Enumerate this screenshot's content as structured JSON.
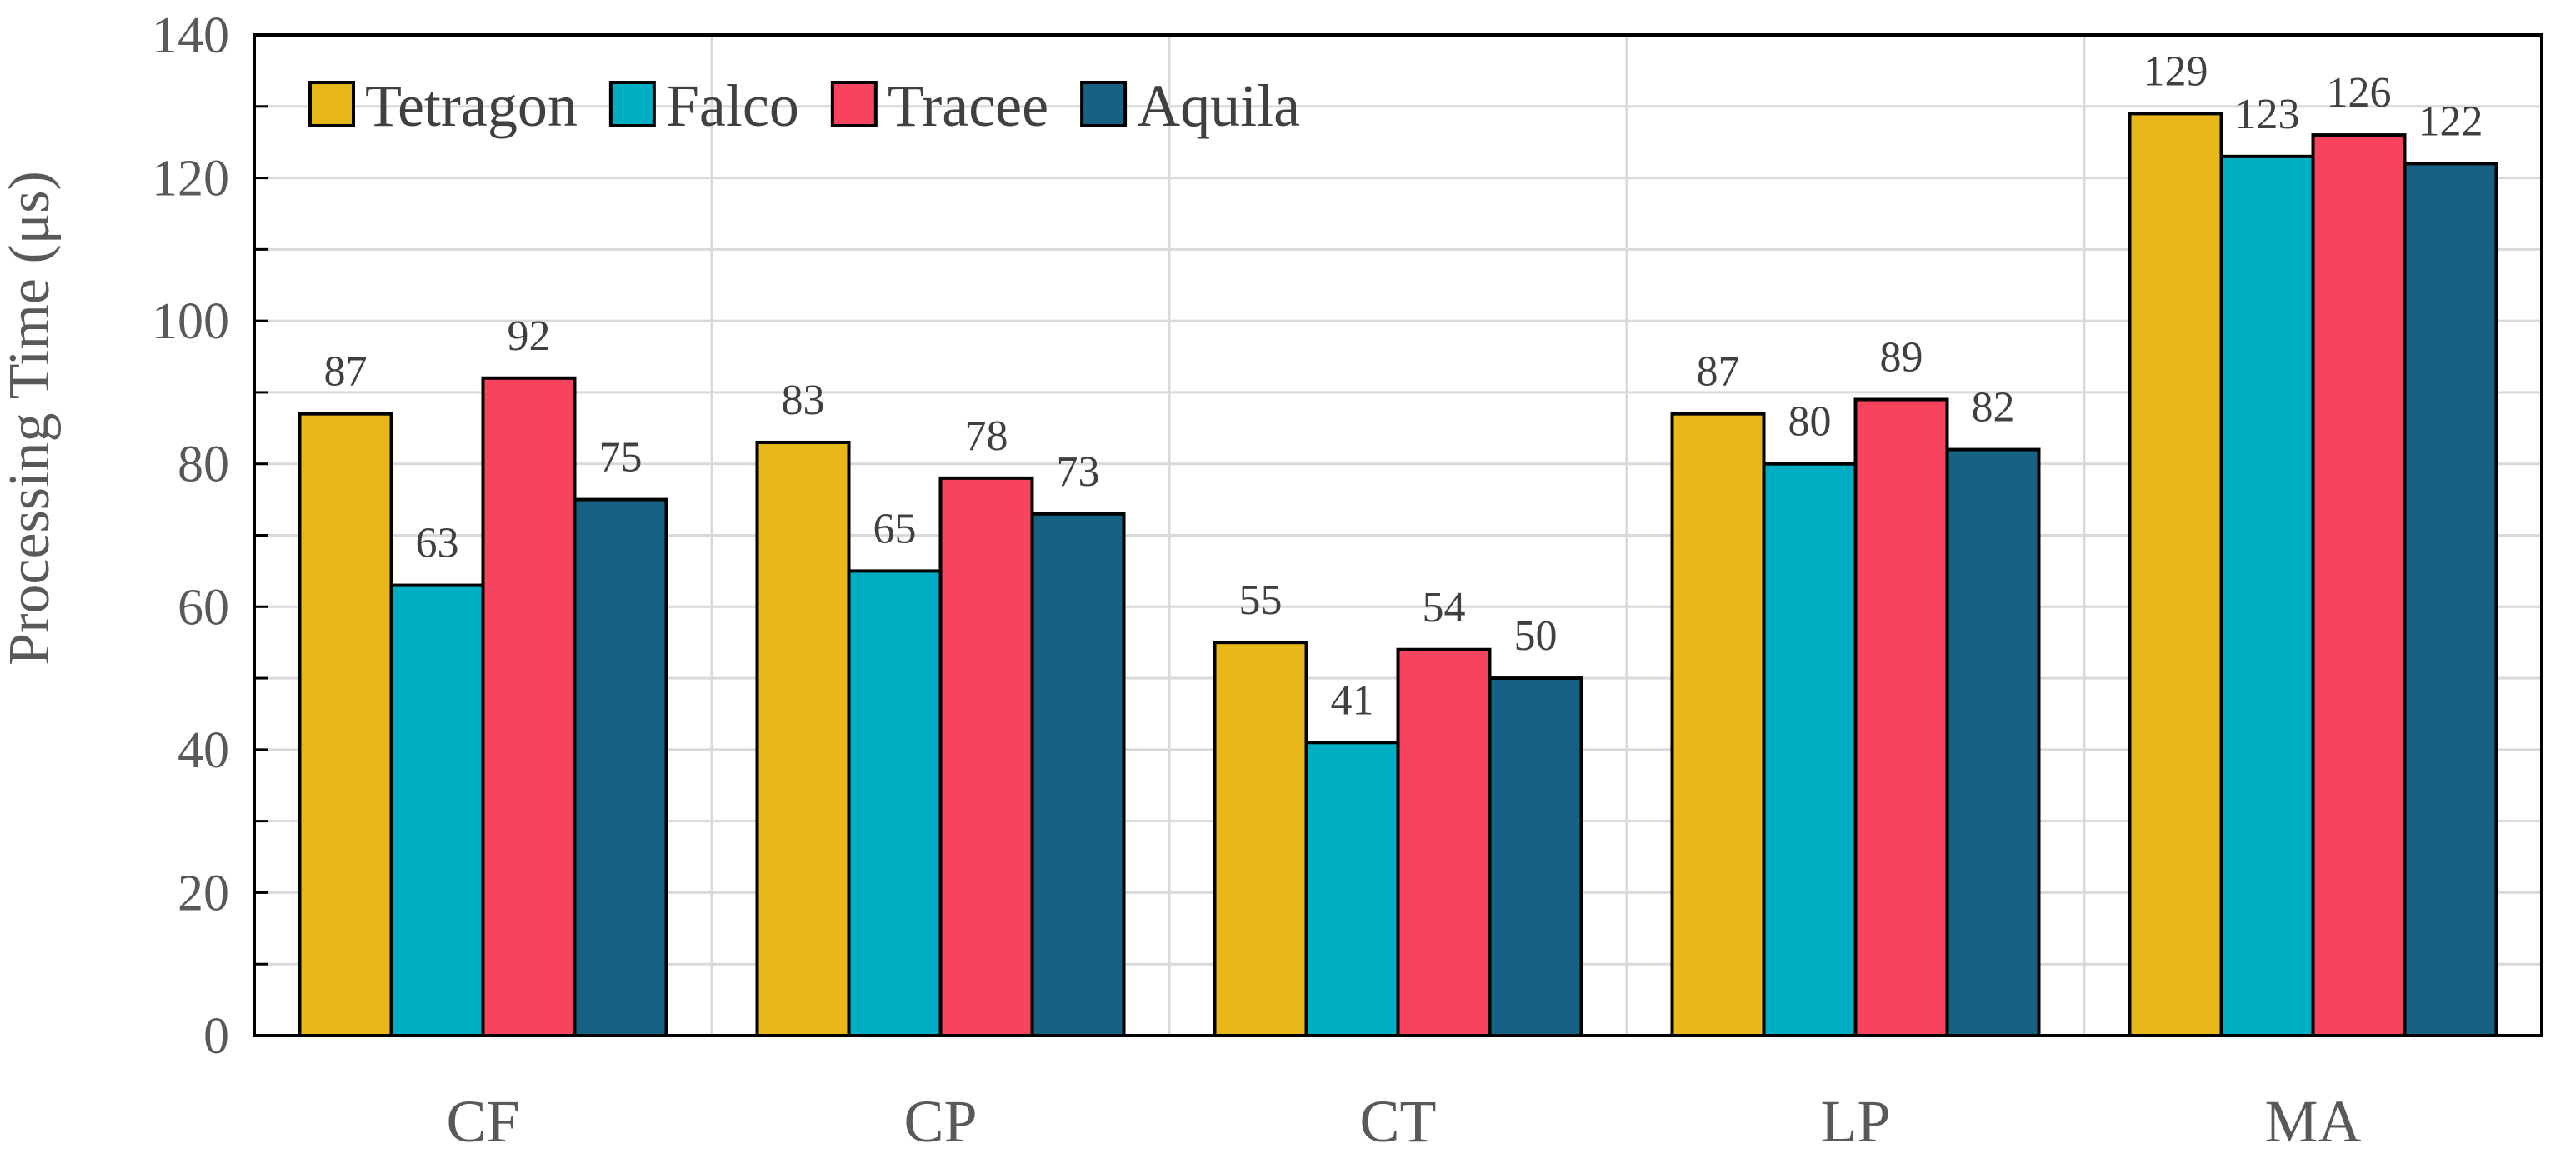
{
  "chart_data": {
    "type": "bar",
    "ylabel": "Processing Time (μs)",
    "ylim": [
      0,
      140
    ],
    "y_ticks": [
      "0",
      "20",
      "40",
      "60",
      "80",
      "100",
      "120",
      "140"
    ],
    "grid": true,
    "legend_position": "top-left",
    "categories": [
      "CF",
      "CP",
      "CT",
      "LP",
      "MA"
    ],
    "series": [
      {
        "name": "Tetragon",
        "color": "#e8b71a",
        "values": [
          87,
          83,
          55,
          87,
          129
        ]
      },
      {
        "name": "Falco",
        "color": "#00aec4",
        "values": [
          63,
          65,
          41,
          80,
          123
        ]
      },
      {
        "name": "Tracee",
        "color": "#f7435e",
        "values": [
          92,
          78,
          54,
          89,
          126
        ]
      },
      {
        "name": "Aquila",
        "color": "#176283",
        "values": [
          75,
          73,
          50,
          82,
          122
        ]
      }
    ]
  }
}
